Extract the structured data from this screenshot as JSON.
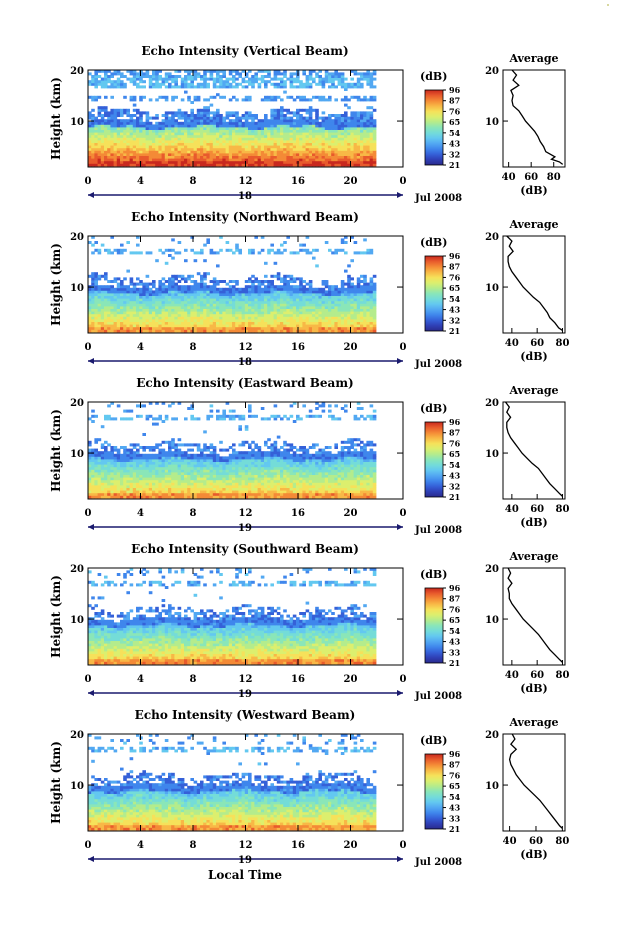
{
  "colors": {
    "scale": [
      "#2a2a8c",
      "#2f3fb5",
      "#3560d8",
      "#3f86ec",
      "#52a8f2",
      "#63c8f0",
      "#74dcd8",
      "#8ae6b8",
      "#b4ec8c",
      "#dcef6e",
      "#f6e15a",
      "#f8b846",
      "#f48a36",
      "#e85a2c",
      "#c8281e"
    ],
    "line": "#000000",
    "axis_arrow": "#1a1a6e"
  },
  "chart_data": [
    {
      "type": "heatmap",
      "title": "Echo Intensity (Vertical Beam)",
      "ylabel": "Height (km)",
      "xticks": [
        "0",
        "4",
        "8",
        "12",
        "16",
        "20",
        "0"
      ],
      "yticks": [
        "20",
        "10"
      ],
      "xlim": [
        0,
        24
      ],
      "ylim": [
        1,
        20
      ],
      "date_day": "18",
      "date_label": "Jul 2008",
      "colorbar": {
        "unit": "(dB)",
        "ticks": [
          "96",
          "87",
          "76",
          "65",
          "54",
          "43",
          "32",
          "21"
        ]
      },
      "average": {
        "title": "Average",
        "xlabel": "(dB)",
        "xticks": [
          "40",
          "60",
          "80"
        ],
        "xlim": [
          35,
          90
        ],
        "ylim": [
          1,
          20
        ],
        "profile": [
          [
            20,
            43
          ],
          [
            19,
            47
          ],
          [
            18,
            44
          ],
          [
            17,
            49
          ],
          [
            16,
            42
          ],
          [
            15,
            44
          ],
          [
            14,
            43
          ],
          [
            13,
            44
          ],
          [
            12,
            49
          ],
          [
            11,
            52
          ],
          [
            10,
            55
          ],
          [
            9,
            59
          ],
          [
            8,
            63
          ],
          [
            7,
            66
          ],
          [
            6,
            68
          ],
          [
            5,
            71
          ],
          [
            4,
            73
          ],
          [
            3,
            81
          ],
          [
            2.5,
            78
          ],
          [
            2,
            85
          ],
          [
            1.5,
            88
          ]
        ]
      }
    },
    {
      "type": "heatmap",
      "title": "Echo Intensity (Northward Beam)",
      "ylabel": "Height (km)",
      "xticks": [
        "0",
        "4",
        "8",
        "12",
        "16",
        "20",
        "0"
      ],
      "yticks": [
        "20",
        "10"
      ],
      "xlim": [
        0,
        24
      ],
      "ylim": [
        1,
        20
      ],
      "date_day": "18",
      "date_label": "Jul 2008",
      "colorbar": {
        "unit": "(dB)",
        "ticks": [
          "96",
          "87",
          "76",
          "65",
          "54",
          "43",
          "32",
          "21"
        ]
      },
      "average": {
        "title": "Average",
        "xlabel": "(dB)",
        "xticks": [
          "40",
          "60",
          "80"
        ],
        "xlim": [
          33,
          82
        ],
        "ylim": [
          1,
          20
        ],
        "profile": [
          [
            20,
            36
          ],
          [
            19,
            40
          ],
          [
            18,
            38
          ],
          [
            17,
            41
          ],
          [
            16,
            37
          ],
          [
            15,
            37
          ],
          [
            14,
            38
          ],
          [
            13,
            40
          ],
          [
            12,
            43
          ],
          [
            11,
            46
          ],
          [
            10,
            49
          ],
          [
            9,
            53
          ],
          [
            8,
            57
          ],
          [
            7,
            62
          ],
          [
            6,
            65
          ],
          [
            5,
            68
          ],
          [
            4,
            70
          ],
          [
            3,
            74
          ],
          [
            2,
            77
          ],
          [
            1.5,
            80
          ]
        ]
      }
    },
    {
      "type": "heatmap",
      "title": "Echo Intensity (Eastward Beam)",
      "ylabel": "Height (km)",
      "xticks": [
        "0",
        "4",
        "8",
        "12",
        "16",
        "20",
        "0"
      ],
      "yticks": [
        "20",
        "10"
      ],
      "xlim": [
        0,
        24
      ],
      "ylim": [
        1,
        20
      ],
      "date_day": "19",
      "date_label": "Jul 2008",
      "colorbar": {
        "unit": "(dB)",
        "ticks": [
          "96",
          "87",
          "76",
          "65",
          "54",
          "43",
          "32",
          "21"
        ]
      },
      "average": {
        "title": "Average",
        "xlabel": "(dB)",
        "xticks": [
          "40",
          "60",
          "80"
        ],
        "xlim": [
          33,
          82
        ],
        "ylim": [
          1,
          20
        ],
        "profile": [
          [
            20,
            35
          ],
          [
            19,
            38
          ],
          [
            18,
            36
          ],
          [
            17,
            39
          ],
          [
            16,
            36
          ],
          [
            15,
            36
          ],
          [
            14,
            37
          ],
          [
            13,
            39
          ],
          [
            12,
            42
          ],
          [
            11,
            45
          ],
          [
            10,
            48
          ],
          [
            9,
            52
          ],
          [
            8,
            56
          ],
          [
            7,
            61
          ],
          [
            6,
            64
          ],
          [
            5,
            67
          ],
          [
            4,
            70
          ],
          [
            3,
            74
          ],
          [
            2,
            78
          ],
          [
            1.5,
            80
          ]
        ]
      }
    },
    {
      "type": "heatmap",
      "title": "Echo Intensity (Southward Beam)",
      "ylabel": "Height (km)",
      "xticks": [
        "0",
        "4",
        "8",
        "12",
        "16",
        "20",
        "0"
      ],
      "yticks": [
        "20",
        "10"
      ],
      "xlim": [
        0,
        24
      ],
      "ylim": [
        1,
        20
      ],
      "date_day": "19",
      "date_label": "Jul 2008",
      "colorbar": {
        "unit": "(dB)",
        "ticks": [
          "96",
          "87",
          "76",
          "65",
          "54",
          "43",
          "33",
          "21"
        ]
      },
      "average": {
        "title": "Average",
        "xlabel": "(dB)",
        "xticks": [
          "40",
          "60",
          "80"
        ],
        "xlim": [
          33,
          82
        ],
        "ylim": [
          1,
          20
        ],
        "profile": [
          [
            20,
            37
          ],
          [
            19,
            39
          ],
          [
            18,
            37
          ],
          [
            17,
            40
          ],
          [
            16,
            37
          ],
          [
            15,
            38
          ],
          [
            14,
            38
          ],
          [
            13,
            40
          ],
          [
            12,
            43
          ],
          [
            11,
            46
          ],
          [
            10,
            49
          ],
          [
            9,
            53
          ],
          [
            8,
            57
          ],
          [
            7,
            61
          ],
          [
            6,
            64
          ],
          [
            5,
            67
          ],
          [
            4,
            70
          ],
          [
            3,
            74
          ],
          [
            2,
            78
          ],
          [
            1.5,
            80
          ]
        ]
      }
    },
    {
      "type": "heatmap",
      "title": "Echo Intensity (Westward Beam)",
      "ylabel": "Height (km)",
      "xticks": [
        "0",
        "4",
        "8",
        "12",
        "16",
        "20",
        "0"
      ],
      "yticks": [
        "20",
        "10"
      ],
      "xlim": [
        0,
        24
      ],
      "ylim": [
        1,
        20
      ],
      "date_day": "19",
      "date_label": "Jul 2008",
      "colorbar": {
        "unit": "(dB)",
        "ticks": [
          "96",
          "87",
          "76",
          "65",
          "54",
          "43",
          "33",
          "21"
        ]
      },
      "average": {
        "title": "Average",
        "xlabel": "(dB)",
        "xticks": [
          "40",
          "60",
          "80"
        ],
        "xlim": [
          35,
          82
        ],
        "ylim": [
          1,
          20
        ],
        "profile": [
          [
            20,
            42
          ],
          [
            19,
            44
          ],
          [
            18,
            41
          ],
          [
            17,
            45
          ],
          [
            16,
            41
          ],
          [
            15,
            40
          ],
          [
            14,
            41
          ],
          [
            13,
            43
          ],
          [
            12,
            45
          ],
          [
            11,
            48
          ],
          [
            10,
            51
          ],
          [
            9,
            55
          ],
          [
            8,
            59
          ],
          [
            7,
            63
          ],
          [
            6,
            66
          ],
          [
            5,
            69
          ],
          [
            4,
            72
          ],
          [
            3,
            75
          ],
          [
            2,
            78
          ],
          [
            1.5,
            80
          ]
        ]
      }
    }
  ],
  "footer": {
    "xlabel": "Local Time"
  }
}
